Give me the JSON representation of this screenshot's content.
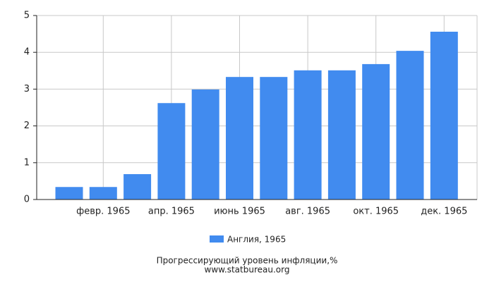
{
  "chart_data": {
    "type": "bar",
    "title": "Прогрессирующий уровень инфляции,%",
    "subtitle": "www.statbureau.org",
    "categories": [
      null,
      "февр. 1965",
      null,
      "апр. 1965",
      null,
      "июнь 1965",
      null,
      "авг. 1965",
      null,
      "окт. 1965",
      null,
      "дек. 1965"
    ],
    "series": [
      {
        "name": "Англия, 1965",
        "color": "#418bef",
        "values": [
          0.34,
          0.34,
          0.69,
          2.62,
          2.99,
          3.33,
          3.33,
          3.51,
          3.51,
          3.68,
          4.04,
          4.56
        ]
      }
    ],
    "ylim": [
      0,
      5
    ],
    "yticks": [
      0,
      1,
      2,
      3,
      4,
      5
    ],
    "grid": true
  }
}
